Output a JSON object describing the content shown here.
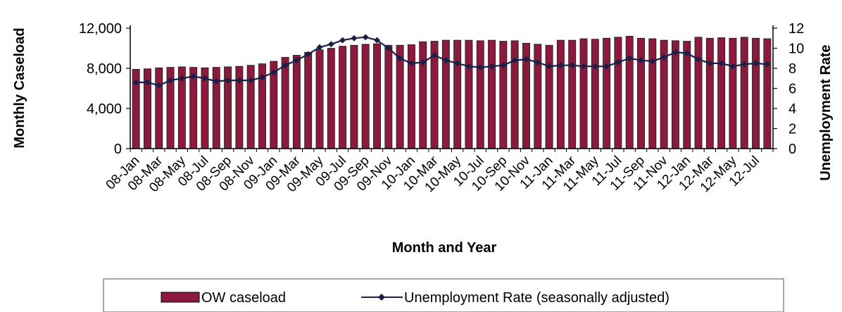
{
  "chart_data": {
    "type": "bar+line",
    "xlabel": "Month and Year",
    "ylabel_left": "Monthly Caseload",
    "ylabel_right": "Unemployment Rate",
    "ylim_left": [
      0,
      12000
    ],
    "yticks_left": [
      "0",
      "4,000",
      "8,000",
      "12,000"
    ],
    "ylim_right": [
      0,
      12
    ],
    "yticks_right": [
      "0",
      "2",
      "4",
      "6",
      "8",
      "10",
      "12"
    ],
    "x_tick_labels": [
      "08-Jan",
      "08-Mar",
      "08-May",
      "08-Jul",
      "08-Sep",
      "08-Nov",
      "09-Jan",
      "09-Mar",
      "09-May",
      "09-Jul",
      "09-Sep",
      "09-Nov",
      "10-Jan",
      "10-Mar",
      "10-May",
      "10-Jul",
      "10-Sep",
      "10-Nov",
      "11-Jan",
      "11-Mar",
      "11-May",
      "11-Jul",
      "11-Sep",
      "11-Nov",
      "12-Jan",
      "12-Mar",
      "12-May",
      "12-Jul"
    ],
    "categories": [
      "08-Jan",
      "08-Feb",
      "08-Mar",
      "08-Apr",
      "08-May",
      "08-Jun",
      "08-Jul",
      "08-Aug",
      "08-Sep",
      "08-Oct",
      "08-Nov",
      "08-Dec",
      "09-Jan",
      "09-Feb",
      "09-Mar",
      "09-Apr",
      "09-May",
      "09-Jun",
      "09-Jul",
      "09-Aug",
      "09-Sep",
      "09-Oct",
      "09-Nov",
      "09-Dec",
      "10-Jan",
      "10-Feb",
      "10-Mar",
      "10-Apr",
      "10-May",
      "10-Jun",
      "10-Jul",
      "10-Aug",
      "10-Sep",
      "10-Oct",
      "10-Nov",
      "10-Dec",
      "11-Jan",
      "11-Feb",
      "11-Mar",
      "11-Apr",
      "11-May",
      "11-Jun",
      "11-Jul",
      "11-Aug",
      "11-Sep",
      "11-Oct",
      "11-Nov",
      "11-Dec",
      "12-Jan",
      "12-Feb",
      "12-Mar",
      "12-Apr",
      "12-May",
      "12-Jun",
      "12-Jul",
      "12-Aug"
    ],
    "series": [
      {
        "name": "OW caseload",
        "type": "bar",
        "axis": "left",
        "color": "#8b1a3c",
        "values": [
          7900,
          7950,
          8050,
          8100,
          8150,
          8100,
          8050,
          8100,
          8150,
          8200,
          8300,
          8450,
          8700,
          9100,
          9300,
          9600,
          9850,
          10000,
          10200,
          10300,
          10400,
          10450,
          10300,
          10300,
          10350,
          10650,
          10700,
          10800,
          10800,
          10800,
          10750,
          10800,
          10700,
          10750,
          10500,
          10400,
          10300,
          10800,
          10800,
          10950,
          10900,
          11000,
          11100,
          11200,
          11000,
          10950,
          10800,
          10750,
          10700,
          11100,
          11000,
          11050,
          11000,
          11100,
          11000,
          10950
        ]
      },
      {
        "name": "Unemployment Rate (seasonally adjusted)",
        "type": "line",
        "axis": "right",
        "color": "#1a1f4a",
        "values": [
          6.6,
          6.6,
          6.3,
          6.8,
          7.0,
          7.2,
          7.0,
          6.7,
          6.8,
          6.8,
          6.8,
          7.1,
          7.6,
          8.3,
          8.8,
          9.4,
          10.1,
          10.4,
          10.8,
          11.0,
          11.1,
          10.8,
          10.0,
          9.0,
          8.5,
          8.6,
          9.3,
          8.8,
          8.5,
          8.2,
          8.1,
          8.2,
          8.3,
          8.8,
          8.9,
          8.6,
          8.2,
          8.3,
          8.3,
          8.2,
          8.2,
          8.2,
          8.6,
          9.0,
          8.8,
          8.7,
          9.1,
          9.6,
          9.5,
          8.9,
          8.5,
          8.5,
          8.2,
          8.4,
          8.5,
          8.4
        ]
      }
    ],
    "legend_position": "bottom",
    "grid": false
  }
}
